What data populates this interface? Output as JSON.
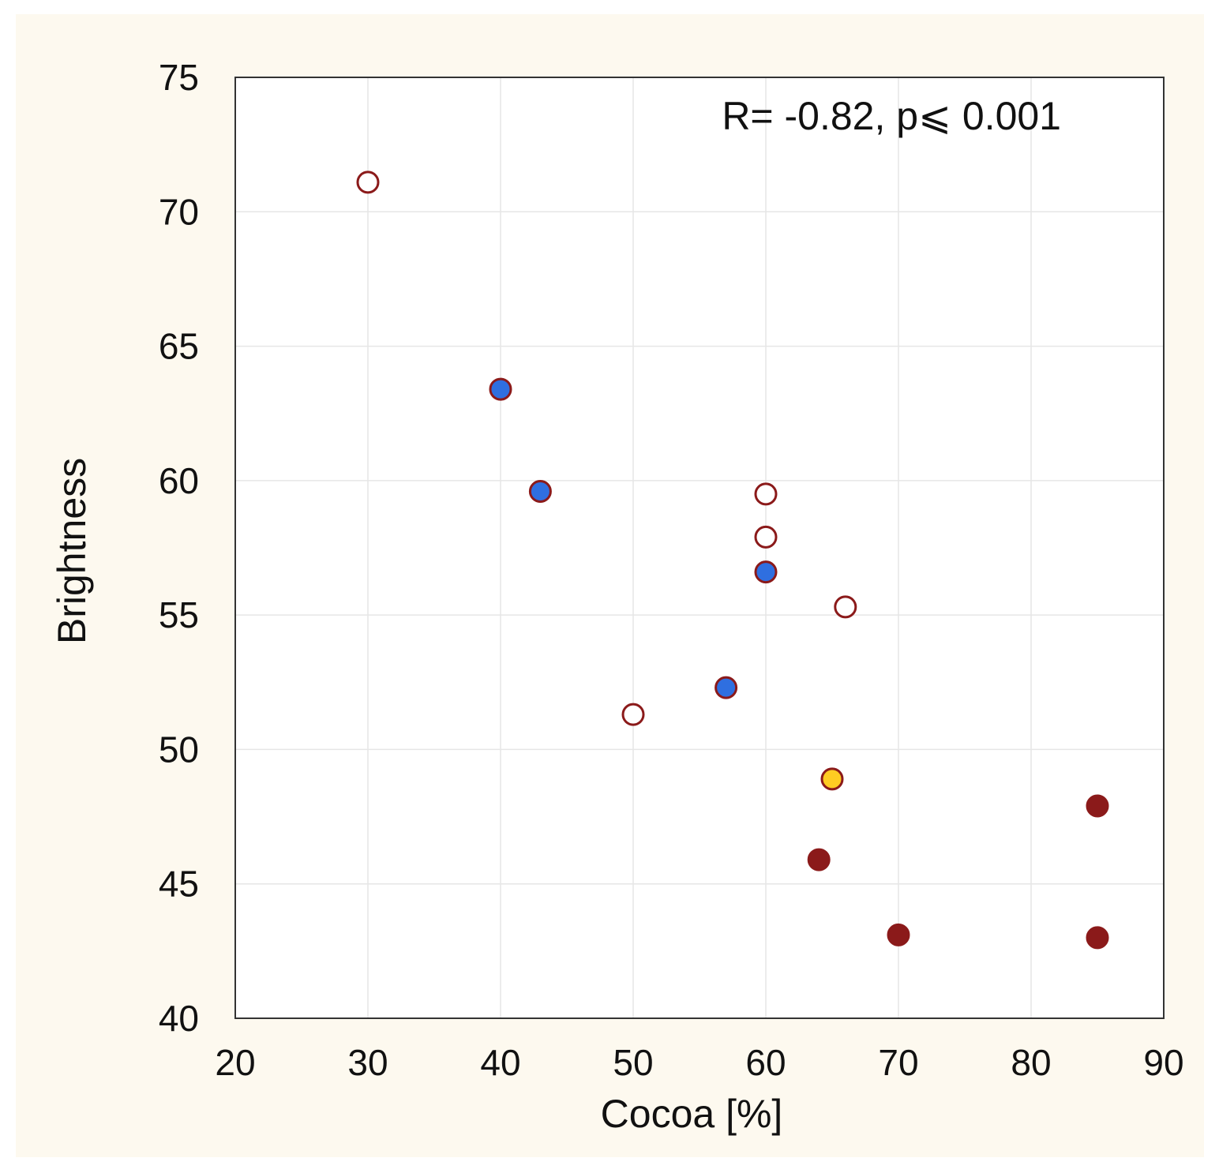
{
  "colors": {
    "figure_bg": "#fdf9ef",
    "plot_bg": "#ffffff",
    "grid": "#e6e6e6",
    "axis": "#333333",
    "marker_edge": "#8b1a1a",
    "open_fill": "#ffffff",
    "blue_fill": "#2f6fe0",
    "yellow_fill": "#ffcc22",
    "dark_fill": "#8b1a1a"
  },
  "chart_data": {
    "type": "scatter",
    "title": "",
    "xlabel": "Cocoa [%]",
    "ylabel": "Brightness",
    "xlim": [
      20,
      90
    ],
    "ylim": [
      40,
      75
    ],
    "xticks": [
      20,
      30,
      40,
      50,
      60,
      70,
      80,
      90
    ],
    "yticks": [
      40,
      45,
      50,
      55,
      60,
      65,
      70,
      75
    ],
    "grid": true,
    "annotation": "R= -0.82, p⩽ 0.001",
    "series": [
      {
        "name": "open",
        "fill": "open_fill",
        "points": [
          {
            "x": 30,
            "y": 71.1
          },
          {
            "x": 60,
            "y": 59.5
          },
          {
            "x": 60,
            "y": 57.9
          },
          {
            "x": 66,
            "y": 55.3
          },
          {
            "x": 50,
            "y": 51.3
          }
        ]
      },
      {
        "name": "blue",
        "fill": "blue_fill",
        "points": [
          {
            "x": 40,
            "y": 63.4
          },
          {
            "x": 43,
            "y": 59.6
          },
          {
            "x": 60,
            "y": 56.6
          },
          {
            "x": 57,
            "y": 52.3
          }
        ]
      },
      {
        "name": "yellow",
        "fill": "yellow_fill",
        "points": [
          {
            "x": 65,
            "y": 48.9
          }
        ]
      },
      {
        "name": "dark",
        "fill": "dark_fill",
        "points": [
          {
            "x": 85,
            "y": 47.9
          },
          {
            "x": 64,
            "y": 45.9
          },
          {
            "x": 70,
            "y": 43.1
          },
          {
            "x": 85,
            "y": 43.0
          }
        ]
      }
    ]
  }
}
